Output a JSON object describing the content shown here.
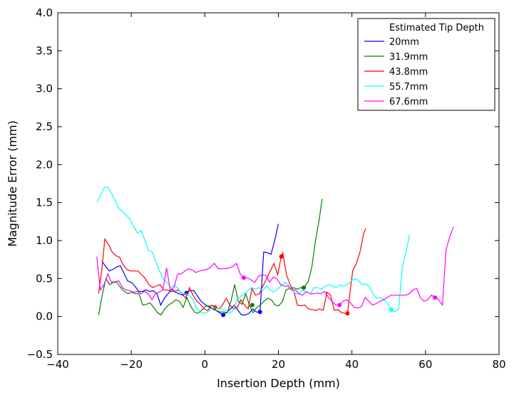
{
  "chart_data": {
    "type": "line",
    "xlabel": "Insertion Depth (mm)",
    "ylabel": "Magnitude Error (mm)",
    "xlim": [
      -40,
      80
    ],
    "ylim": [
      -0.5,
      4.0
    ],
    "xticks": [
      -40,
      -20,
      0,
      20,
      40,
      60,
      80
    ],
    "yticks": [
      -0.5,
      0.0,
      0.5,
      1.0,
      1.5,
      2.0,
      2.5,
      3.0,
      3.5,
      4.0
    ],
    "xtick_labels": [
      "−40",
      "−20",
      "0",
      "20",
      "40",
      "60",
      "80"
    ],
    "ytick_labels": [
      "−0.5",
      "0.0",
      "0.5",
      "1.0",
      "1.5",
      "2.0",
      "2.5",
      "3.0",
      "3.5",
      "4.0"
    ],
    "grid": false,
    "legend_title": "Estimated Tip Depth",
    "legend_position": "top-right",
    "series": [
      {
        "name": "20mm",
        "color": "#0000ff",
        "marker_point": [
          15.0,
          0.06
        ],
        "marker_point2": [
          5.0,
          0.02
        ],
        "marker_point3": [
          -5.0,
          0.31
        ],
        "x": [
          -28,
          -27,
          -26,
          -25,
          -24,
          -23,
          -22,
          -21,
          -20,
          -19,
          -18,
          -17,
          -16,
          -15,
          -14,
          -13,
          -12,
          -11,
          -10,
          -9,
          -8,
          -7,
          -6,
          -5,
          -4,
          -3,
          -2,
          -1,
          0,
          1,
          2,
          3,
          4,
          5,
          6,
          7,
          8,
          9,
          10,
          11,
          12,
          13,
          14,
          15,
          16,
          17,
          18,
          19,
          20
        ],
        "y": [
          0.73,
          0.66,
          0.6,
          0.62,
          0.65,
          0.67,
          0.57,
          0.47,
          0.45,
          0.4,
          0.33,
          0.33,
          0.35,
          0.33,
          0.34,
          0.3,
          0.15,
          0.24,
          0.3,
          0.36,
          0.32,
          0.3,
          0.28,
          0.31,
          0.34,
          0.34,
          0.27,
          0.2,
          0.16,
          0.13,
          0.1,
          0.08,
          0.05,
          0.02,
          0.06,
          0.1,
          0.15,
          0.08,
          0.02,
          0.02,
          0.04,
          0.1,
          0.06,
          0.06,
          0.85,
          0.84,
          0.82,
          1.0,
          1.22
        ]
      },
      {
        "name": "31.9mm",
        "color": "#008000",
        "marker_point": [
          26.9,
          0.38
        ],
        "marker_point2": [
          12.9,
          0.15
        ],
        "x": [
          -28.9,
          -27.9,
          -26.9,
          -25.9,
          -24.9,
          -23.9,
          -22.9,
          -21.9,
          -20.9,
          -19.9,
          -18.9,
          -17.9,
          -16.9,
          -15.9,
          -14.9,
          -13.9,
          -12.9,
          -11.9,
          -10.9,
          -9.9,
          -8.9,
          -7.9,
          -6.9,
          -5.9,
          -4.9,
          -3.9,
          -2.9,
          -1.9,
          -0.9,
          0.1,
          1.1,
          2.1,
          3.1,
          4.1,
          5.1,
          6.1,
          7.1,
          8.1,
          9.1,
          10.1,
          11.1,
          12.1,
          13.1,
          14.1,
          15.1,
          16.1,
          17.1,
          18.1,
          19.1,
          20.1,
          21.1,
          22.1,
          23.1,
          24.1,
          25.1,
          26.1,
          26.9,
          28.1,
          29.1,
          30.1,
          31.1,
          31.9
        ],
        "y": [
          0.02,
          0.28,
          0.5,
          0.42,
          0.45,
          0.45,
          0.38,
          0.33,
          0.3,
          0.32,
          0.3,
          0.3,
          0.15,
          0.16,
          0.18,
          0.12,
          0.05,
          0.02,
          0.1,
          0.15,
          0.18,
          0.22,
          0.2,
          0.12,
          0.25,
          0.14,
          0.06,
          0.04,
          0.08,
          0.13,
          0.14,
          0.1,
          0.08,
          0.06,
          0.06,
          0.05,
          0.2,
          0.42,
          0.2,
          0.16,
          0.3,
          0.15,
          0.05,
          0.12,
          0.15,
          0.2,
          0.24,
          0.22,
          0.15,
          0.14,
          0.2,
          0.35,
          0.37,
          0.38,
          0.36,
          0.38,
          0.38,
          0.46,
          0.65,
          1.0,
          1.28,
          1.55
        ]
      },
      {
        "name": "43.8mm",
        "color": "#ff0000",
        "marker_point": [
          38.8,
          0.04
        ],
        "marker_point2": [
          20.8,
          0.79
        ],
        "marker_point3": [
          2.8,
          0.12
        ],
        "x": [
          -28.9,
          -28,
          -27.2,
          -26.2,
          -25.2,
          -24.2,
          -23.2,
          -22.2,
          -21.2,
          -20.2,
          -19.2,
          -18.2,
          -17.2,
          -16.2,
          -15.2,
          -14.2,
          -13.2,
          -12.2,
          -11.2,
          -10.2,
          -9.2,
          -8.2,
          -7.2,
          -6.2,
          -5.2,
          -4.2,
          -3.2,
          -2.2,
          -1.2,
          -0.2,
          0.8,
          1.8,
          2.8,
          3.8,
          4.8,
          5.8,
          6.8,
          7.8,
          8.8,
          9.8,
          10.8,
          11.8,
          12.8,
          13.8,
          14.8,
          15.8,
          16.8,
          17.8,
          18.8,
          19.8,
          20.8,
          21.2,
          22.2,
          23.2,
          24.2,
          25.2,
          26.2,
          27.2,
          28.2,
          29.2,
          30.2,
          31.2,
          32.2,
          33.2,
          34.2,
          35.2,
          36.2,
          37.2,
          38.2,
          38.8,
          39.2,
          40.2,
          41.2,
          42.2,
          43.2,
          43.8
        ],
        "y": [
          0.3,
          0.62,
          1.02,
          0.95,
          0.85,
          0.8,
          0.78,
          0.68,
          0.62,
          0.6,
          0.6,
          0.6,
          0.55,
          0.5,
          0.42,
          0.38,
          0.4,
          0.42,
          0.35,
          0.35,
          0.33,
          0.33,
          0.35,
          0.3,
          0.24,
          0.38,
          0.28,
          0.2,
          0.16,
          0.1,
          0.08,
          0.15,
          0.12,
          0.1,
          0.15,
          0.24,
          0.15,
          0.1,
          0.12,
          0.22,
          0.15,
          0.1,
          0.37,
          0.28,
          0.3,
          0.4,
          0.5,
          0.6,
          0.7,
          0.55,
          0.79,
          0.84,
          0.55,
          0.42,
          0.33,
          0.15,
          0.14,
          0.15,
          0.1,
          0.09,
          0.08,
          0.1,
          0.08,
          0.32,
          0.28,
          0.08,
          0.09,
          0.05,
          0.04,
          0.04,
          0.2,
          0.6,
          0.7,
          0.85,
          1.1,
          1.16
        ]
      },
      {
        "name": "55.7mm",
        "color": "#00ffff",
        "marker_point": [
          50.7,
          0.09
        ],
        "x": [
          -29.3,
          -28.3,
          -27.3,
          -26.3,
          -25.3,
          -24.3,
          -23.3,
          -22.3,
          -21.3,
          -20.3,
          -19.3,
          -18.3,
          -17.3,
          -16.3,
          -15.3,
          -14.3,
          -13.3,
          -12.3,
          -11.3,
          -10.3,
          -9.3,
          -8.3,
          -7.3,
          -6.3,
          -5.3,
          -4.3,
          -3.3,
          -2.3,
          -1.3,
          -0.3,
          0.7,
          1.7,
          2.7,
          3.7,
          4.7,
          5.7,
          6.7,
          7.7,
          8.7,
          9.7,
          10.7,
          11.7,
          12.7,
          13.7,
          14.7,
          15.7,
          16.7,
          17.7,
          18.7,
          19.7,
          20.7,
          21.7,
          22.7,
          23.7,
          24.7,
          25.7,
          26.7,
          27.7,
          28.7,
          29.7,
          30.7,
          31.7,
          32.7,
          33.7,
          34.7,
          35.7,
          36.7,
          37.7,
          38.7,
          39.7,
          40.7,
          41.7,
          42.7,
          43.7,
          44.7,
          45.7,
          46.7,
          47.7,
          48.7,
          49.7,
          50.7,
          51.7,
          52.7,
          53.7,
          54.7,
          55.7
        ],
        "y": [
          1.51,
          1.6,
          1.7,
          1.7,
          1.62,
          1.52,
          1.42,
          1.38,
          1.33,
          1.28,
          1.18,
          1.1,
          1.13,
          1.0,
          0.87,
          0.85,
          0.72,
          0.6,
          0.5,
          0.45,
          0.38,
          0.41,
          0.37,
          0.3,
          0.3,
          0.28,
          0.23,
          0.12,
          0.06,
          0.04,
          0.06,
          0.1,
          0.12,
          0.1,
          0.1,
          0.08,
          0.04,
          0.08,
          0.22,
          0.26,
          0.3,
          0.34,
          0.38,
          0.36,
          0.38,
          0.34,
          0.4,
          0.36,
          0.32,
          0.36,
          0.4,
          0.45,
          0.42,
          0.35,
          0.3,
          0.3,
          0.35,
          0.32,
          0.3,
          0.38,
          0.38,
          0.36,
          0.4,
          0.42,
          0.4,
          0.38,
          0.42,
          0.4,
          0.42,
          0.46,
          0.5,
          0.48,
          0.42,
          0.43,
          0.4,
          0.3,
          0.24,
          0.25,
          0.22,
          0.18,
          0.09,
          0.06,
          0.1,
          0.65,
          0.85,
          1.08
        ]
      },
      {
        "name": "67.6mm",
        "color": "#ff00ff",
        "marker_point": [
          62.6,
          0.25
        ],
        "marker_point2": [
          36.6,
          0.15
        ],
        "marker_point3": [
          10.6,
          0.51
        ],
        "x": [
          -29.4,
          -28.4,
          -27.4,
          -26.4,
          -25.4,
          -24.4,
          -23.4,
          -22.4,
          -21.4,
          -20.4,
          -19.4,
          -18.4,
          -17.4,
          -16.4,
          -15.4,
          -14.4,
          -13.4,
          -12.4,
          -11.4,
          -10.4,
          -9.4,
          -8.4,
          -7.4,
          -6.4,
          -5.4,
          -4.4,
          -3.4,
          -2.4,
          -1.4,
          -0.4,
          0.6,
          1.6,
          2.6,
          3.6,
          4.6,
          5.6,
          6.6,
          7.6,
          8.6,
          9.6,
          10.6,
          11.6,
          12.6,
          13.6,
          14.6,
          15.6,
          16.6,
          17.6,
          18.6,
          19.6,
          20.6,
          21.6,
          22.6,
          23.6,
          24.6,
          25.6,
          26.6,
          27.6,
          28.6,
          29.6,
          30.6,
          31.6,
          32.6,
          33.6,
          34.6,
          35.6,
          36.6,
          37.6,
          38.6,
          39.6,
          40.6,
          41.6,
          42.6,
          43.6,
          44.6,
          45.6,
          46.6,
          47.6,
          48.6,
          49.6,
          50.6,
          51.6,
          52.6,
          53.6,
          54.6,
          55.6,
          56.6,
          57.6,
          58.6,
          59.6,
          60.6,
          61.6,
          62.6,
          63.6,
          64.6,
          65.6,
          66.6,
          67.6
        ],
        "y": [
          0.79,
          0.35,
          0.42,
          0.56,
          0.45,
          0.46,
          0.47,
          0.38,
          0.35,
          0.34,
          0.32,
          0.33,
          0.3,
          0.33,
          0.3,
          0.22,
          0.3,
          0.32,
          0.35,
          0.64,
          0.35,
          0.38,
          0.56,
          0.56,
          0.6,
          0.63,
          0.61,
          0.58,
          0.6,
          0.61,
          0.62,
          0.65,
          0.7,
          0.63,
          0.63,
          0.63,
          0.64,
          0.66,
          0.7,
          0.56,
          0.51,
          0.51,
          0.48,
          0.45,
          0.53,
          0.55,
          0.54,
          0.45,
          0.52,
          0.5,
          0.42,
          0.4,
          0.4,
          0.35,
          0.35,
          0.3,
          0.28,
          0.33,
          0.3,
          0.3,
          0.31,
          0.3,
          0.33,
          0.25,
          0.2,
          0.15,
          0.15,
          0.2,
          0.22,
          0.18,
          0.12,
          0.11,
          0.13,
          0.25,
          0.2,
          0.15,
          0.17,
          0.2,
          0.22,
          0.25,
          0.28,
          0.28,
          0.28,
          0.28,
          0.28,
          0.3,
          0.35,
          0.37,
          0.25,
          0.2,
          0.22,
          0.28,
          0.25,
          0.22,
          0.15,
          0.88,
          1.05,
          1.18
        ]
      }
    ]
  }
}
